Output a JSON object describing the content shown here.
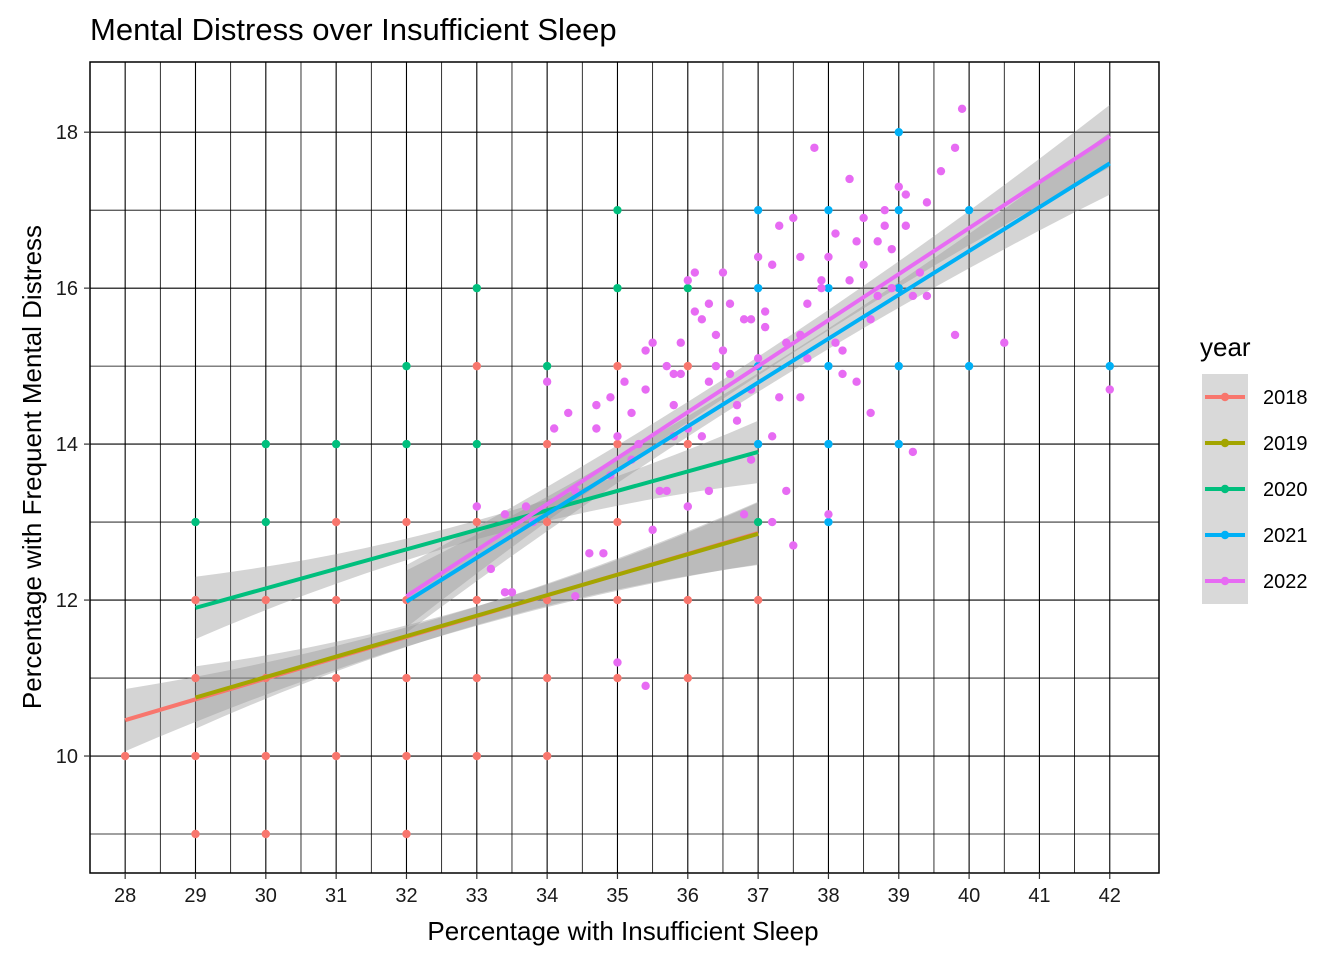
{
  "chart_data": {
    "type": "scatter",
    "title": "Mental Distress over Insufficient Sleep",
    "xlabel": "Percentage with Insufficient Sleep",
    "ylabel": "Percentage with Frequent Mental Distress",
    "xlim": [
      27.5,
      42.7
    ],
    "ylim": [
      8.5,
      18.9
    ],
    "x_ticks": [
      28,
      29,
      30,
      31,
      32,
      33,
      34,
      35,
      36,
      37,
      38,
      39,
      40,
      41,
      42
    ],
    "y_ticks": [
      10,
      12,
      14,
      16,
      18
    ],
    "grid": true,
    "legend": {
      "title": "year",
      "position": "right"
    },
    "series": [
      {
        "name": "2018",
        "color": "#F8766D",
        "points": [
          [
            28,
            10
          ],
          [
            29,
            12
          ],
          [
            29,
            11
          ],
          [
            29,
            10
          ],
          [
            29,
            9
          ],
          [
            30,
            12
          ],
          [
            30,
            11
          ],
          [
            30,
            10
          ],
          [
            30,
            9
          ],
          [
            31,
            13
          ],
          [
            31,
            12
          ],
          [
            31,
            11
          ],
          [
            31,
            10
          ],
          [
            32,
            13
          ],
          [
            32,
            12
          ],
          [
            32,
            11
          ],
          [
            32,
            10
          ],
          [
            32,
            9
          ],
          [
            33,
            15
          ],
          [
            33,
            13
          ],
          [
            33,
            12
          ],
          [
            33,
            11
          ],
          [
            33,
            10
          ],
          [
            34,
            14
          ],
          [
            34,
            13
          ],
          [
            34,
            12
          ],
          [
            34,
            11
          ],
          [
            34,
            10
          ],
          [
            35,
            15
          ],
          [
            35,
            14
          ],
          [
            35,
            13
          ],
          [
            35,
            12
          ],
          [
            35,
            11
          ],
          [
            36,
            15
          ],
          [
            36,
            14
          ],
          [
            36,
            12
          ],
          [
            36,
            11
          ],
          [
            37,
            12
          ]
        ],
        "fit": {
          "x": [
            28,
            37
          ],
          "y": [
            10.46,
            12.86
          ]
        }
      },
      {
        "name": "2019",
        "color": "#A3A500",
        "points": [],
        "fit": {
          "x": [
            29,
            37
          ],
          "y": [
            10.75,
            12.85
          ]
        }
      },
      {
        "name": "2020",
        "color": "#00BF7D",
        "points": [
          [
            29,
            13
          ],
          [
            30,
            14
          ],
          [
            30,
            13
          ],
          [
            31,
            14
          ],
          [
            32,
            15
          ],
          [
            32,
            14
          ],
          [
            33,
            16
          ],
          [
            33,
            14
          ],
          [
            34,
            15
          ],
          [
            35,
            17
          ],
          [
            35,
            16
          ],
          [
            36,
            16
          ],
          [
            37,
            13
          ]
        ],
        "fit": {
          "x": [
            29,
            37
          ],
          "y": [
            11.9,
            13.9
          ]
        }
      },
      {
        "name": "2021",
        "color": "#00B0F6",
        "points": [
          [
            37,
            17
          ],
          [
            37,
            16
          ],
          [
            37,
            15
          ],
          [
            37,
            14
          ],
          [
            38,
            17
          ],
          [
            38,
            16
          ],
          [
            38,
            15
          ],
          [
            38,
            14
          ],
          [
            38,
            13
          ],
          [
            39,
            18
          ],
          [
            39,
            17
          ],
          [
            39,
            16
          ],
          [
            39,
            15
          ],
          [
            39,
            14
          ],
          [
            40,
            17
          ],
          [
            40,
            15
          ],
          [
            42,
            15
          ]
        ],
        "fit": {
          "x": [
            32,
            42
          ],
          "y": [
            11.98,
            17.6
          ]
        }
      },
      {
        "name": "2022",
        "color": "#E76BF3",
        "points": [
          [
            33,
            13.2
          ],
          [
            33.2,
            12.4
          ],
          [
            33.4,
            13.1
          ],
          [
            33.4,
            12.1
          ],
          [
            33.5,
            12.1
          ],
          [
            33.7,
            13.2
          ],
          [
            33.8,
            13
          ],
          [
            34,
            14.8
          ],
          [
            34.1,
            14.2
          ],
          [
            34.3,
            14.4
          ],
          [
            34.4,
            13.4
          ],
          [
            34.4,
            12.05
          ],
          [
            34.6,
            12.6
          ],
          [
            34.7,
            14.5
          ],
          [
            34.7,
            14.2
          ],
          [
            34.8,
            12.6
          ],
          [
            34.9,
            13.6
          ],
          [
            35,
            14.1
          ],
          [
            35,
            11.2
          ],
          [
            35.1,
            14.8
          ],
          [
            35.2,
            13.8
          ],
          [
            35.3,
            14
          ],
          [
            35.4,
            15.2
          ],
          [
            35.4,
            14.7
          ],
          [
            35.5,
            15.3
          ],
          [
            35.6,
            13.4
          ],
          [
            35.7,
            15
          ],
          [
            35.8,
            14.5
          ],
          [
            35.8,
            14.1
          ],
          [
            35.9,
            14.9
          ],
          [
            36,
            16.1
          ],
          [
            36,
            14.2
          ],
          [
            36.1,
            16.2
          ],
          [
            36.2,
            15.6
          ],
          [
            36.3,
            14.8
          ],
          [
            36.4,
            15.4
          ],
          [
            36.5,
            16.2
          ],
          [
            36.6,
            15.8
          ],
          [
            36.7,
            14.3
          ],
          [
            36.8,
            15.6
          ],
          [
            36.9,
            14.7
          ],
          [
            37,
            16.4
          ],
          [
            37,
            15.1
          ],
          [
            37.1,
            15.7
          ],
          [
            37.2,
            16.3
          ],
          [
            37.3,
            14.6
          ],
          [
            37.4,
            15.3
          ],
          [
            37.5,
            16.9
          ],
          [
            37.6,
            16.4
          ],
          [
            37.7,
            15.8
          ],
          [
            37.8,
            17.8
          ],
          [
            37.9,
            16
          ],
          [
            38,
            16.4
          ],
          [
            38.1,
            15.3
          ],
          [
            38.2,
            14.9
          ],
          [
            38.3,
            17.4
          ],
          [
            38.4,
            16.6
          ],
          [
            38.5,
            16.3
          ],
          [
            38.6,
            14.4
          ],
          [
            38.7,
            16.6
          ],
          [
            38.8,
            17
          ],
          [
            38.9,
            16.5
          ],
          [
            39,
            17.3
          ],
          [
            39.1,
            16.8
          ],
          [
            39.2,
            15.9
          ],
          [
            39.4,
            15.9
          ],
          [
            39.6,
            17.5
          ],
          [
            39.8,
            17.8
          ],
          [
            39.9,
            18.3
          ],
          [
            35.4,
            10.9
          ],
          [
            37.2,
            13
          ],
          [
            37.5,
            12.7
          ],
          [
            38,
            13.1
          ],
          [
            39.2,
            13.9
          ],
          [
            39.8,
            15.4
          ],
          [
            40.5,
            15.3
          ],
          [
            42,
            14.7
          ],
          [
            36.8,
            13.1
          ],
          [
            37.4,
            13.4
          ],
          [
            35.7,
            13.4
          ],
          [
            35.5,
            12.9
          ],
          [
            36,
            13.2
          ],
          [
            36.3,
            13.4
          ],
          [
            36.9,
            13.8
          ],
          [
            37.2,
            14.1
          ],
          [
            37.6,
            14.6
          ],
          [
            38.2,
            15.2
          ],
          [
            38.6,
            15.6
          ],
          [
            39.3,
            16.2
          ],
          [
            36.2,
            14.1
          ],
          [
            36.6,
            14.9
          ],
          [
            36.4,
            15
          ],
          [
            35.9,
            15.3
          ],
          [
            36.1,
            15.7
          ],
          [
            37.1,
            15.5
          ],
          [
            37.7,
            15.1
          ],
          [
            38.4,
            14.8
          ],
          [
            38.9,
            16
          ],
          [
            39.1,
            17.2
          ],
          [
            39.4,
            17.1
          ],
          [
            38.8,
            16.8
          ],
          [
            36.5,
            15.2
          ],
          [
            35.2,
            14.4
          ],
          [
            34.9,
            14.6
          ],
          [
            36.7,
            14.5
          ],
          [
            36.9,
            15.6
          ],
          [
            37.3,
            16.8
          ],
          [
            37.9,
            16.1
          ],
          [
            38.1,
            16.7
          ],
          [
            38.5,
            16.9
          ],
          [
            38.7,
            15.9
          ],
          [
            35.8,
            14.9
          ],
          [
            36.3,
            15.8
          ],
          [
            37.6,
            15.4
          ],
          [
            38.3,
            16.1
          ]
        ],
        "fit": {
          "x": [
            32,
            42
          ],
          "y": [
            12.05,
            17.95
          ]
        }
      }
    ]
  }
}
